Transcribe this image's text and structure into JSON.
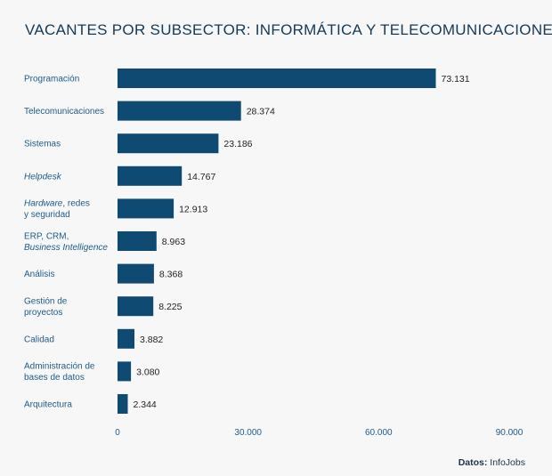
{
  "title": "VACANTES POR SUBSECTOR: INFORMÁTICA Y TELECOMUNICACIONES",
  "source": {
    "label": "Datos:",
    "value": "InfoJobs"
  },
  "colors": {
    "bar": "#0f4a73",
    "label": "#1f5b86",
    "title": "#143a55",
    "background": "#f7f7f7"
  },
  "chart_data": {
    "type": "bar",
    "orientation": "horizontal",
    "title": "VACANTES POR SUBSECTOR: INFORMÁTICA Y TELECOMUNICACIONES",
    "categories": [
      "Programación",
      "Telecomunicaciones",
      "Sistemas",
      "Helpdesk",
      "Hardware, redes y seguridad",
      "ERP, CRM, Business Intelligence",
      "Análisis",
      "Gestión de proyectos",
      "Calidad",
      "Administración de bases de datos",
      "Arquitectura"
    ],
    "category_lines": [
      [
        [
          {
            "t": "Programación",
            "i": false
          }
        ]
      ],
      [
        [
          {
            "t": "Telecomunicaciones",
            "i": false
          }
        ]
      ],
      [
        [
          {
            "t": "Sistemas",
            "i": false
          }
        ]
      ],
      [
        [
          {
            "t": "Helpdesk",
            "i": true
          }
        ]
      ],
      [
        [
          {
            "t": "Hardware",
            "i": true
          },
          {
            "t": ", redes",
            "i": false
          }
        ],
        [
          {
            "t": "y seguridad",
            "i": false
          }
        ]
      ],
      [
        [
          {
            "t": "ERP, CRM,",
            "i": false
          }
        ],
        [
          {
            "t": "Business Intelligence",
            "i": true
          }
        ]
      ],
      [
        [
          {
            "t": "Análisis",
            "i": false
          }
        ]
      ],
      [
        [
          {
            "t": "Gestión de",
            "i": false
          }
        ],
        [
          {
            "t": "proyectos",
            "i": false
          }
        ]
      ],
      [
        [
          {
            "t": "Calidad",
            "i": false
          }
        ]
      ],
      [
        [
          {
            "t": "Administración de",
            "i": false
          }
        ],
        [
          {
            "t": "bases de datos",
            "i": false
          }
        ]
      ],
      [
        [
          {
            "t": "Arquitectura",
            "i": false
          }
        ]
      ]
    ],
    "values": [
      73131,
      28374,
      23186,
      14767,
      12913,
      8963,
      8368,
      8225,
      3882,
      3080,
      2344
    ],
    "value_labels": [
      "73.131",
      "28.374",
      "23.186",
      "14.767",
      "12.913",
      "8.963",
      "8.368",
      "8.225",
      "3.882",
      "3.080",
      "2.344"
    ],
    "xlim": [
      0,
      90000
    ],
    "xticks": [
      0,
      30000,
      60000,
      90000
    ],
    "xtick_labels": [
      "0",
      "30.000",
      "60.000",
      "90.000"
    ],
    "grid": false,
    "legend": "none"
  }
}
